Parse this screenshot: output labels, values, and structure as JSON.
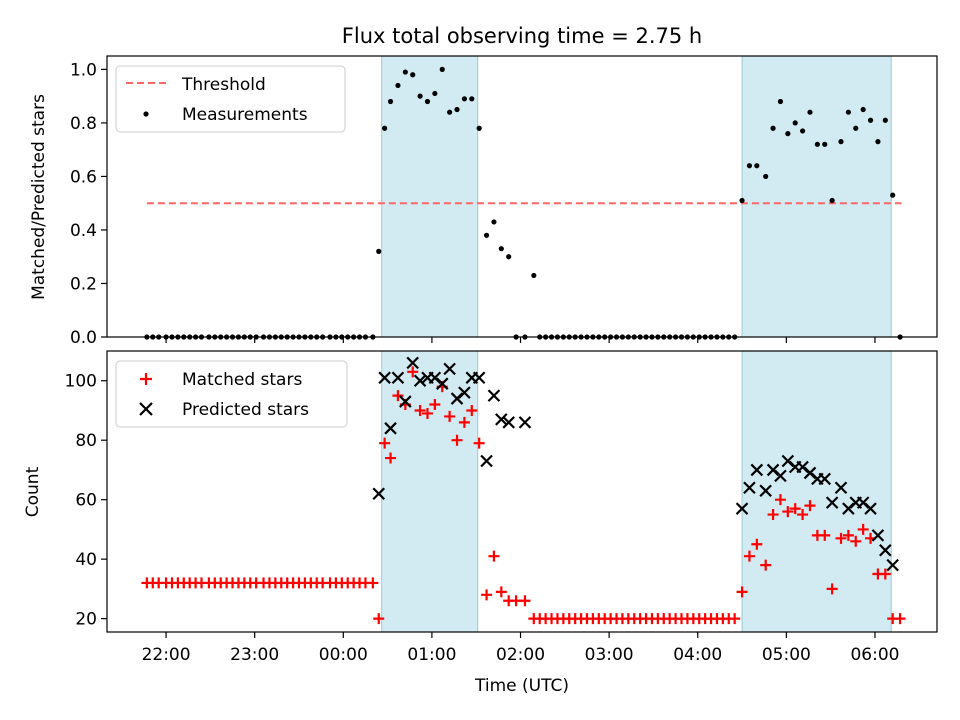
{
  "title": "Flux total observing time = 2.75 h",
  "colors": {
    "band": "#add8e6",
    "threshold": "#ff6666",
    "matched": "#ff0000",
    "predicted": "#000000",
    "measurement": "#000000"
  },
  "chart_data": [
    {
      "type": "scatter",
      "panel": "top",
      "title": "Flux total observing time = 2.75 h",
      "xlabel": "",
      "ylabel": "Matched/Predicted stars",
      "ylim": [
        0,
        1.05
      ],
      "yticks": [
        0.0,
        0.2,
        0.4,
        0.6,
        0.8,
        1.0
      ],
      "ytick_labels": [
        "0.0",
        "0.2",
        "0.4",
        "0.6",
        "0.8",
        "1.0"
      ],
      "legend": {
        "placement": "top-left",
        "entries": [
          {
            "label": "Threshold",
            "kind": "dash"
          },
          {
            "label": "Measurements",
            "kind": "dot"
          }
        ]
      },
      "shaded_intervals": [
        [
          "00:26",
          "01:31"
        ],
        [
          "04:30",
          "06:11"
        ]
      ],
      "threshold": {
        "name": "Threshold",
        "y": 0.5,
        "x_start": "21:47",
        "x_end": "06:18"
      },
      "series": [
        {
          "name": "Measurements",
          "x": [
            "21:47",
            "21:51",
            "21:55",
            "22:00",
            "22:04",
            "22:08",
            "22:12",
            "22:16",
            "22:20",
            "22:24",
            "22:29",
            "22:33",
            "22:37",
            "22:41",
            "22:45",
            "22:49",
            "22:53",
            "22:57",
            "23:01",
            "23:06",
            "23:10",
            "23:14",
            "23:18",
            "23:22",
            "23:26",
            "23:30",
            "23:34",
            "23:38",
            "23:42",
            "23:46",
            "23:51",
            "23:55",
            "23:59",
            "00:03",
            "00:07",
            "00:11",
            "00:15",
            "00:20",
            "00:24",
            "00:28",
            "00:32",
            "00:37",
            "00:42",
            "00:47",
            "00:52",
            "00:57",
            "01:02",
            "01:07",
            "01:12",
            "01:17",
            "01:22",
            "01:27",
            "01:32",
            "01:37",
            "01:42",
            "01:47",
            "01:52",
            "01:57",
            "02:03",
            "02:09",
            "02:13",
            "02:17",
            "02:21",
            "02:25",
            "02:29",
            "02:33",
            "02:37",
            "02:41",
            "02:45",
            "02:49",
            "02:53",
            "02:57",
            "03:01",
            "03:05",
            "03:09",
            "03:13",
            "03:17",
            "03:21",
            "03:25",
            "03:29",
            "03:33",
            "03:37",
            "03:41",
            "03:45",
            "03:49",
            "03:53",
            "03:57",
            "04:01",
            "04:05",
            "04:09",
            "04:13",
            "04:17",
            "04:21",
            "04:25",
            "04:30",
            "04:35",
            "04:40",
            "04:46",
            "04:51",
            "04:56",
            "05:01",
            "05:06",
            "05:11",
            "05:16",
            "05:21",
            "05:26",
            "05:31",
            "05:37",
            "05:42",
            "05:47",
            "05:52",
            "05:57",
            "06:02",
            "06:07",
            "06:12",
            "06:17"
          ],
          "y": [
            0,
            0,
            0,
            0,
            0,
            0,
            0,
            0,
            0,
            0,
            0,
            0,
            0,
            0,
            0,
            0,
            0,
            0,
            0,
            0,
            0,
            0,
            0,
            0,
            0,
            0,
            0,
            0,
            0,
            0,
            0,
            0,
            0,
            0,
            0,
            0,
            0,
            0,
            0.32,
            0.78,
            0.88,
            0.94,
            0.99,
            0.98,
            0.9,
            0.88,
            0.91,
            1.0,
            0.84,
            0.85,
            0.89,
            0.89,
            0.78,
            0.38,
            0.43,
            0.33,
            0.3,
            0,
            0,
            0.23,
            0,
            0,
            0,
            0,
            0,
            0,
            0,
            0,
            0,
            0,
            0,
            0,
            0,
            0,
            0,
            0,
            0,
            0,
            0,
            0,
            0,
            0,
            0,
            0,
            0,
            0,
            0,
            0,
            0,
            0,
            0,
            0,
            0,
            0,
            0.51,
            0.64,
            0.64,
            0.6,
            0.78,
            0.88,
            0.76,
            0.8,
            0.77,
            0.84,
            0.72,
            0.72,
            0.51,
            0.73,
            0.84,
            0.78,
            0.85,
            0.81,
            0.73,
            0.81,
            0.53,
            0
          ]
        }
      ]
    },
    {
      "type": "scatter",
      "panel": "bottom",
      "xlabel": "Time (UTC)",
      "ylabel": "Count",
      "ylim": [
        15.5,
        110
      ],
      "yticks": [
        20,
        40,
        60,
        80,
        100
      ],
      "ytick_labels": [
        "20",
        "40",
        "60",
        "80",
        "100"
      ],
      "xrange": [
        "21:20",
        "06:42"
      ],
      "xticks": [
        "22:00",
        "23:00",
        "00:00",
        "01:00",
        "02:00",
        "03:00",
        "04:00",
        "05:00",
        "06:00"
      ],
      "xtick_labels": [
        "22:00",
        "23:00",
        "00:00",
        "01:00",
        "02:00",
        "03:00",
        "04:00",
        "05:00",
        "06:00"
      ],
      "legend": {
        "placement": "top-left",
        "entries": [
          {
            "label": "Matched stars",
            "kind": "plus"
          },
          {
            "label": "Predicted stars",
            "kind": "x"
          }
        ]
      },
      "shaded_intervals": [
        [
          "00:26",
          "01:31"
        ],
        [
          "04:30",
          "06:11"
        ]
      ],
      "series": [
        {
          "name": "Matched stars",
          "x": [
            "21:47",
            "21:51",
            "21:55",
            "22:00",
            "22:04",
            "22:08",
            "22:12",
            "22:16",
            "22:20",
            "22:24",
            "22:29",
            "22:33",
            "22:37",
            "22:41",
            "22:45",
            "22:49",
            "22:53",
            "22:57",
            "23:01",
            "23:06",
            "23:10",
            "23:14",
            "23:18",
            "23:22",
            "23:26",
            "23:30",
            "23:34",
            "23:38",
            "23:42",
            "23:46",
            "23:51",
            "23:55",
            "23:59",
            "00:03",
            "00:07",
            "00:11",
            "00:15",
            "00:20",
            "00:24",
            "00:28",
            "00:32",
            "00:37",
            "00:42",
            "00:47",
            "00:52",
            "00:57",
            "01:02",
            "01:07",
            "01:12",
            "01:17",
            "01:22",
            "01:27",
            "01:32",
            "01:37",
            "01:42",
            "01:47",
            "01:52",
            "01:57",
            "02:03",
            "02:09",
            "02:13",
            "02:17",
            "02:21",
            "02:25",
            "02:29",
            "02:33",
            "02:37",
            "02:41",
            "02:45",
            "02:49",
            "02:53",
            "02:57",
            "03:01",
            "03:05",
            "03:09",
            "03:13",
            "03:17",
            "03:21",
            "03:25",
            "03:29",
            "03:33",
            "03:37",
            "03:41",
            "03:45",
            "03:49",
            "03:53",
            "03:57",
            "04:01",
            "04:05",
            "04:09",
            "04:13",
            "04:17",
            "04:21",
            "04:25",
            "04:30",
            "04:35",
            "04:40",
            "04:46",
            "04:51",
            "04:56",
            "05:01",
            "05:06",
            "05:11",
            "05:16",
            "05:21",
            "05:26",
            "05:31",
            "05:37",
            "05:42",
            "05:47",
            "05:52",
            "05:57",
            "06:02",
            "06:07",
            "06:12",
            "06:17"
          ],
          "y": [
            32,
            32,
            32,
            32,
            32,
            32,
            32,
            32,
            32,
            32,
            32,
            32,
            32,
            32,
            32,
            32,
            32,
            32,
            32,
            32,
            32,
            32,
            32,
            32,
            32,
            32,
            32,
            32,
            32,
            32,
            32,
            32,
            32,
            32,
            32,
            32,
            32,
            32,
            20,
            79,
            74,
            95,
            92,
            103,
            90,
            89,
            92,
            98,
            88,
            80,
            86,
            90,
            79,
            28,
            41,
            29,
            26,
            26,
            26,
            20,
            20,
            20,
            20,
            20,
            20,
            20,
            20,
            20,
            20,
            20,
            20,
            20,
            20,
            20,
            20,
            20,
            20,
            20,
            20,
            20,
            20,
            20,
            20,
            20,
            20,
            20,
            20,
            20,
            20,
            20,
            20,
            20,
            20,
            20,
            29,
            41,
            45,
            38,
            55,
            60,
            56,
            57,
            55,
            58,
            48,
            48,
            30,
            47,
            48,
            46,
            50,
            47,
            35,
            35,
            20,
            20
          ]
        },
        {
          "name": "Predicted stars",
          "x": [
            "00:24",
            "00:28",
            "00:32",
            "00:37",
            "00:42",
            "00:47",
            "00:52",
            "00:57",
            "01:02",
            "01:07",
            "01:12",
            "01:17",
            "01:22",
            "01:27",
            "01:32",
            "01:37",
            "01:42",
            "01:47",
            "01:52",
            "02:03",
            "04:30",
            "04:35",
            "04:40",
            "04:46",
            "04:51",
            "04:56",
            "05:01",
            "05:06",
            "05:11",
            "05:16",
            "05:21",
            "05:26",
            "05:31",
            "05:37",
            "05:42",
            "05:47",
            "05:52",
            "05:57",
            "06:02",
            "06:07",
            "06:12"
          ],
          "y": [
            62,
            101,
            84,
            101,
            93,
            106,
            100,
            101,
            101,
            99,
            104,
            94,
            96,
            101,
            101,
            73,
            95,
            87,
            86,
            86,
            57,
            64,
            70,
            63,
            70,
            68,
            73,
            71,
            71,
            69,
            67,
            67,
            59,
            64,
            57,
            59,
            59,
            57,
            48,
            43,
            38
          ]
        }
      ]
    }
  ]
}
